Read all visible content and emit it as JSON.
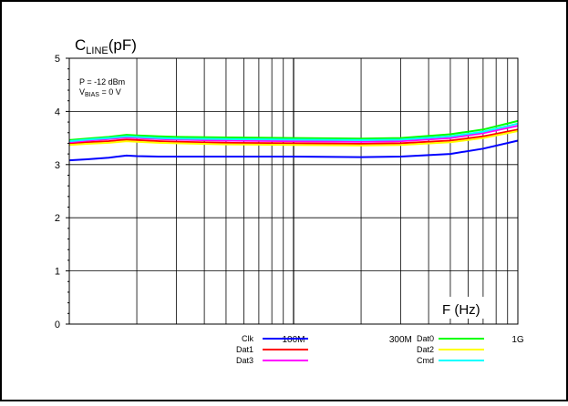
{
  "chart_data": {
    "type": "line",
    "title": "",
    "ylabel": {
      "main": "C",
      "sub": "LINE",
      "unit": "(pF)"
    },
    "xlabel": "F (Hz)",
    "x_scale": "log",
    "xlim": [
      10000000,
      1000000000
    ],
    "ylim": [
      0,
      5
    ],
    "y_ticks": [
      0,
      1,
      2,
      3,
      4,
      5
    ],
    "x_tick_labels": [
      {
        "value": 100000000,
        "label": "100M"
      },
      {
        "value": 300000000,
        "label": "300M"
      },
      {
        "value": 1000000000,
        "label": "1G"
      }
    ],
    "grid": true,
    "conditions": [
      {
        "main": "P = -12 dBm",
        "sub": "",
        "tail": ""
      },
      {
        "main": "V",
        "sub": "BIAS",
        "tail": " = 0 V"
      }
    ],
    "legend_position": "bottom",
    "series": [
      {
        "name": "Clk",
        "color": "#0000ff",
        "x": [
          10000000,
          12000000,
          15000000,
          18000000,
          20000000,
          25000000,
          30000000,
          50000000,
          100000000,
          200000000,
          300000000,
          500000000,
          700000000,
          1000000000
        ],
        "y": [
          3.08,
          3.1,
          3.13,
          3.17,
          3.16,
          3.15,
          3.15,
          3.15,
          3.15,
          3.14,
          3.15,
          3.2,
          3.3,
          3.45
        ]
      },
      {
        "name": "Dat1",
        "color": "#ff0000",
        "x": [
          10000000,
          12000000,
          15000000,
          18000000,
          20000000,
          25000000,
          30000000,
          50000000,
          100000000,
          200000000,
          300000000,
          500000000,
          700000000,
          1000000000
        ],
        "y": [
          3.4,
          3.42,
          3.44,
          3.47,
          3.46,
          3.44,
          3.43,
          3.41,
          3.4,
          3.39,
          3.4,
          3.45,
          3.53,
          3.66
        ]
      },
      {
        "name": "Dat3",
        "color": "#ff00ff",
        "x": [
          10000000,
          12000000,
          15000000,
          18000000,
          20000000,
          25000000,
          30000000,
          50000000,
          100000000,
          200000000,
          300000000,
          500000000,
          700000000,
          1000000000
        ],
        "y": [
          3.42,
          3.45,
          3.48,
          3.51,
          3.5,
          3.48,
          3.47,
          3.45,
          3.44,
          3.43,
          3.44,
          3.5,
          3.59,
          3.73
        ]
      },
      {
        "name": "Dat0",
        "color": "#00ff00",
        "x": [
          10000000,
          12000000,
          15000000,
          18000000,
          20000000,
          25000000,
          30000000,
          50000000,
          100000000,
          200000000,
          300000000,
          500000000,
          700000000,
          1000000000
        ],
        "y": [
          3.46,
          3.49,
          3.52,
          3.56,
          3.55,
          3.53,
          3.52,
          3.51,
          3.5,
          3.49,
          3.5,
          3.57,
          3.66,
          3.82
        ]
      },
      {
        "name": "Dat2",
        "color": "#ffff00",
        "x": [
          10000000,
          12000000,
          15000000,
          18000000,
          20000000,
          25000000,
          30000000,
          50000000,
          100000000,
          200000000,
          300000000,
          500000000,
          700000000,
          1000000000
        ],
        "y": [
          3.37,
          3.39,
          3.41,
          3.44,
          3.43,
          3.41,
          3.4,
          3.38,
          3.37,
          3.36,
          3.37,
          3.42,
          3.5,
          3.63
        ]
      },
      {
        "name": "Cmd",
        "color": "#00ffff",
        "x": [
          10000000,
          12000000,
          15000000,
          18000000,
          20000000,
          25000000,
          30000000,
          50000000,
          100000000,
          200000000,
          300000000,
          500000000,
          700000000,
          1000000000
        ],
        "y": [
          3.44,
          3.47,
          3.5,
          3.53,
          3.52,
          3.5,
          3.49,
          3.48,
          3.47,
          3.46,
          3.47,
          3.53,
          3.62,
          3.77
        ]
      }
    ]
  }
}
